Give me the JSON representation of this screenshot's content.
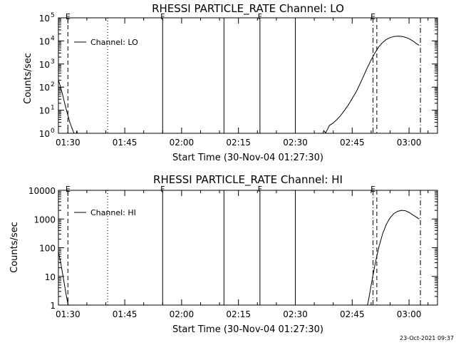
{
  "footer": "23-Oct-2021 09:37",
  "chart_data": [
    {
      "type": "line",
      "title": "RHESSI PARTICLE_RATE Channel: LO",
      "xlabel": "Start Time (30-Nov-04 01:27:30)",
      "ylabel": "Counts/sec",
      "y_scale": "log",
      "ylim": [
        1,
        100000
      ],
      "xlim": [
        "01:27:30",
        "03:07:30"
      ],
      "x_ticks": [
        "01:30",
        "01:45",
        "02:00",
        "02:15",
        "02:30",
        "02:45",
        "03:00"
      ],
      "y_ticks": [
        {
          "value": 1,
          "base": "10",
          "exp": "0"
        },
        {
          "value": 10,
          "base": "10",
          "exp": "1"
        },
        {
          "value": 100,
          "base": "10",
          "exp": "2"
        },
        {
          "value": 1000,
          "base": "10",
          "exp": "3"
        },
        {
          "value": 10000,
          "base": "10",
          "exp": "4"
        },
        {
          "value": 100000,
          "base": "10",
          "exp": "5"
        }
      ],
      "legend": {
        "label": "Channel: LO",
        "position": "top-left"
      },
      "series": [
        {
          "segments": [
            [
              [
                "01:27:30",
                200
              ],
              [
                "01:28:00",
                110
              ],
              [
                "01:28:30",
                55
              ],
              [
                "01:29:00",
                25
              ],
              [
                "01:29:30",
                12
              ],
              [
                "01:30:00",
                6
              ],
              [
                "01:30:30",
                3
              ],
              [
                "01:31:00",
                1.8
              ],
              [
                "01:31:30",
                1.1
              ],
              [
                "01:32:00",
                0.8
              ]
            ],
            [
              [
                "01:32:10",
                0.8
              ],
              [
                "01:32:20",
                1.3
              ],
              [
                "01:32:40",
                0.8
              ]
            ],
            [
              [
                "02:37:10",
                0.8
              ],
              [
                "02:37:30",
                1.3
              ],
              [
                "02:38:00",
                1.05
              ],
              [
                "02:38:30",
                1.5
              ],
              [
                "02:39:00",
                2.2
              ],
              [
                "02:40:00",
                2.8
              ],
              [
                "02:41:00",
                4
              ],
              [
                "02:42:00",
                6
              ],
              [
                "02:43:00",
                10
              ],
              [
                "02:44:00",
                17
              ],
              [
                "02:45:00",
                32
              ],
              [
                "02:46:00",
                60
              ],
              [
                "02:47:00",
                130
              ],
              [
                "02:48:00",
                300
              ],
              [
                "02:49:00",
                700
              ],
              [
                "02:50:00",
                1500
              ],
              [
                "02:51:00",
                3000
              ],
              [
                "02:52:00",
                5500
              ],
              [
                "02:53:00",
                8500
              ],
              [
                "02:54:00",
                11500
              ],
              [
                "02:55:00",
                14000
              ],
              [
                "02:56:00",
                15500
              ],
              [
                "02:57:00",
                16000
              ],
              [
                "02:58:00",
                15800
              ],
              [
                "02:59:00",
                14500
              ],
              [
                "03:00:00",
                12500
              ],
              [
                "03:01:00",
                10000
              ],
              [
                "03:02:00",
                7500
              ],
              [
                "03:02:40",
                6500
              ]
            ]
          ]
        }
      ],
      "markers": [
        {
          "time": "01:30:00",
          "style": "dashed",
          "label": "E"
        },
        {
          "time": "01:40:30",
          "style": "dotted",
          "label": ""
        },
        {
          "time": "01:55:00",
          "style": "solid",
          "label": "F"
        },
        {
          "time": "02:11:10",
          "style": "solid",
          "label": ""
        },
        {
          "time": "02:20:40",
          "style": "solid",
          "label": "F"
        },
        {
          "time": "02:30:00",
          "style": "solid",
          "label": ""
        },
        {
          "time": "02:50:30",
          "style": "dashdot",
          "label": "E"
        },
        {
          "time": "02:51:30",
          "style": "dashed",
          "label": ""
        },
        {
          "time": "03:03:00",
          "style": "dashdot",
          "label": ""
        }
      ]
    },
    {
      "type": "line",
      "title": "RHESSI PARTICLE_RATE Channel: HI",
      "xlabel": "Start Time (30-Nov-04 01:27:30)",
      "ylabel": "Counts/sec",
      "y_scale": "log",
      "ylim": [
        1,
        10000
      ],
      "xlim": [
        "01:27:30",
        "03:07:30"
      ],
      "x_ticks": [
        "01:30",
        "01:45",
        "02:00",
        "02:15",
        "02:30",
        "02:45",
        "03:00"
      ],
      "y_ticks": [
        {
          "value": 1,
          "label": "1"
        },
        {
          "value": 10,
          "label": "10"
        },
        {
          "value": 100,
          "label": "100"
        },
        {
          "value": 1000,
          "label": "1000"
        },
        {
          "value": 10000,
          "label": "10000"
        }
      ],
      "legend": {
        "label": "Channel: HI",
        "position": "top-left"
      },
      "series": [
        {
          "segments": [
            [
              [
                "01:27:30",
                70
              ],
              [
                "01:28:00",
                35
              ],
              [
                "01:28:30",
                15
              ],
              [
                "01:29:00",
                6
              ],
              [
                "01:29:30",
                2.5
              ],
              [
                "01:30:00",
                1.1
              ],
              [
                "01:30:20",
                0.9
              ]
            ],
            [
              [
                "02:49:00",
                0.95
              ],
              [
                "02:49:30",
                2
              ],
              [
                "02:50:00",
                5
              ],
              [
                "02:51:00",
                25
              ],
              [
                "02:52:00",
                100
              ],
              [
                "02:53:00",
                300
              ],
              [
                "02:54:00",
                650
              ],
              [
                "02:55:00",
                1100
              ],
              [
                "02:56:00",
                1550
              ],
              [
                "02:57:00",
                1850
              ],
              [
                "02:58:00",
                2000
              ],
              [
                "02:59:00",
                1950
              ],
              [
                "03:00:00",
                1700
              ],
              [
                "03:01:00",
                1400
              ],
              [
                "03:02:00",
                1150
              ],
              [
                "03:02:40",
                1000
              ]
            ]
          ]
        }
      ],
      "markers": [
        {
          "time": "01:30:00",
          "style": "dashed",
          "label": "E"
        },
        {
          "time": "01:40:30",
          "style": "dotted",
          "label": ""
        },
        {
          "time": "01:55:00",
          "style": "solid",
          "label": "F"
        },
        {
          "time": "02:11:10",
          "style": "solid",
          "label": ""
        },
        {
          "time": "02:20:40",
          "style": "solid",
          "label": "F"
        },
        {
          "time": "02:30:00",
          "style": "solid",
          "label": ""
        },
        {
          "time": "02:50:30",
          "style": "dashdot",
          "label": "E"
        },
        {
          "time": "02:51:30",
          "style": "dashed",
          "label": ""
        },
        {
          "time": "03:03:00",
          "style": "dashdot",
          "label": ""
        }
      ]
    }
  ]
}
